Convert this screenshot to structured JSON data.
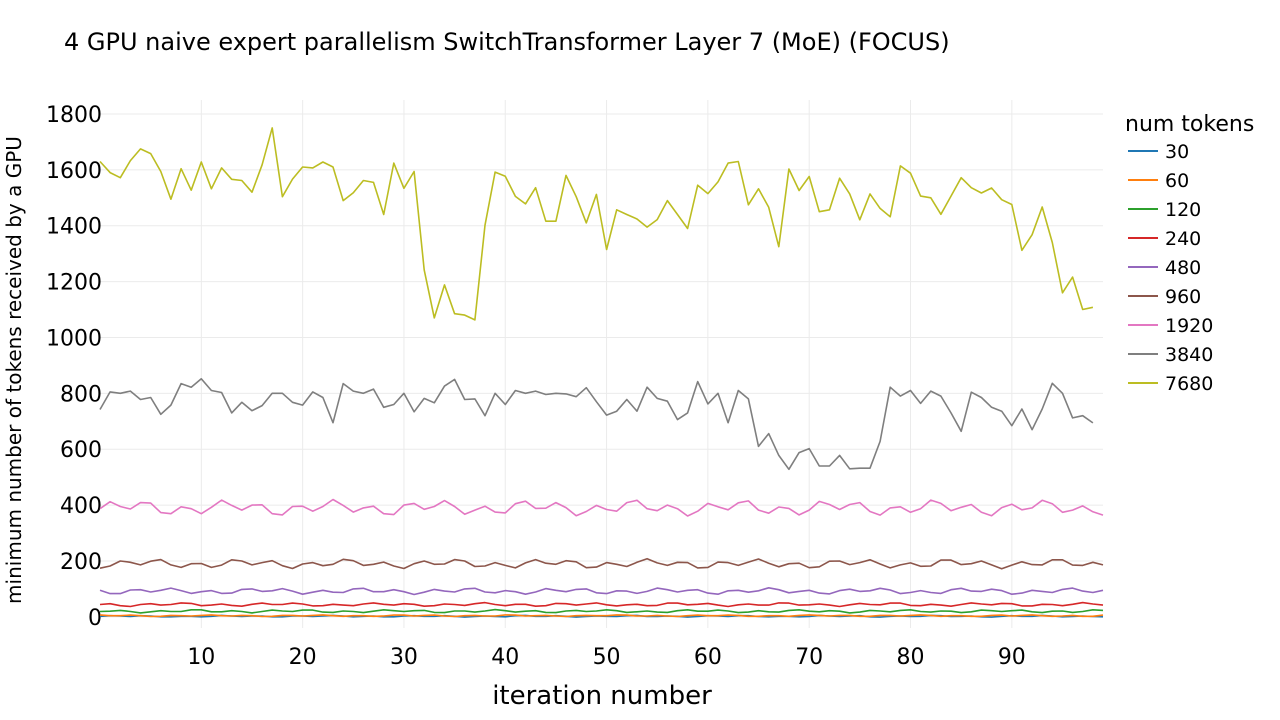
{
  "chart_data": {
    "type": "line",
    "title": "4 GPU naive expert parallelism SwitchTransformer Layer 7 (MoE) (FOCUS)",
    "xlabel": "iteration number",
    "ylabel": "minimum number of tokens received by a GPU",
    "xlim": [
      0,
      99
    ],
    "ylim": [
      -40,
      1850
    ],
    "x_ticks": [
      10,
      20,
      30,
      40,
      50,
      60,
      70,
      80,
      90
    ],
    "y_ticks": [
      0,
      200,
      400,
      600,
      800,
      1000,
      1200,
      1400,
      1600,
      1800
    ],
    "grid": true,
    "legend_position": "right",
    "legend_title": "num tokens",
    "series": [
      {
        "name": "30",
        "color": "#1f77b4",
        "base": 2,
        "amp": 3
      },
      {
        "name": "60",
        "color": "#ff7f0e",
        "base": 4,
        "amp": 3
      },
      {
        "name": "120",
        "color": "#2ca02c",
        "base": 20,
        "amp": 6
      },
      {
        "name": "240",
        "color": "#d62728",
        "base": 44,
        "amp": 7
      },
      {
        "name": "480",
        "color": "#9467bd",
        "base": 92,
        "amp": 12
      },
      {
        "name": "960",
        "color": "#8c564b",
        "base": 190,
        "amp": 18
      },
      {
        "name": "1920",
        "color": "#e377c2",
        "base": 390,
        "amp": 30
      },
      {
        "name": "3840",
        "color": "#7f7f7f",
        "values": [
          742,
          805,
          800,
          808,
          778,
          785,
          725,
          758,
          835,
          822,
          852,
          810,
          803,
          730,
          768,
          738,
          756,
          800,
          800,
          768,
          758,
          805,
          785,
          695,
          835,
          808,
          800,
          815,
          750,
          760,
          800,
          734,
          782,
          766,
          826,
          850,
          778,
          780,
          720,
          800,
          760,
          810,
          800,
          808,
          796,
          800,
          798,
          788,
          820,
          770,
          722,
          736,
          778,
          736,
          822,
          782,
          772,
          706,
          730,
          842,
          762,
          800,
          695,
          810,
          780,
          610,
          656,
          578,
          528,
          588,
          602,
          540,
          540,
          578,
          530,
          532,
          532,
          628,
          822,
          790,
          810,
          764,
          808,
          790,
          730,
          664,
          804,
          785,
          750,
          736,
          684,
          744,
          670,
          744,
          836,
          800,
          712,
          720,
          694
        ]
      },
      {
        "name": "7680",
        "color": "#bcbd22",
        "values": [
          1630,
          1590,
          1572,
          1633,
          1675,
          1658,
          1594,
          1495,
          1604,
          1527,
          1628,
          1532,
          1607,
          1566,
          1562,
          1520,
          1618,
          1750,
          1504,
          1567,
          1610,
          1607,
          1628,
          1610,
          1490,
          1518,
          1562,
          1555,
          1440,
          1624,
          1534,
          1594,
          1242,
          1070,
          1188,
          1085,
          1080,
          1063,
          1402,
          1592,
          1577,
          1505,
          1478,
          1536,
          1416,
          1416,
          1580,
          1504,
          1410,
          1512,
          1315,
          1457,
          1440,
          1424,
          1395,
          1422,
          1490,
          1440,
          1390,
          1545,
          1515,
          1557,
          1624,
          1630,
          1475,
          1532,
          1466,
          1325,
          1603,
          1526,
          1576,
          1450,
          1457,
          1570,
          1514,
          1421,
          1514,
          1462,
          1432,
          1614,
          1588,
          1506,
          1500,
          1441,
          1506,
          1572,
          1536,
          1517,
          1535,
          1493,
          1476,
          1312,
          1368,
          1467,
          1340,
          1160,
          1216,
          1100,
          1108
        ]
      }
    ]
  }
}
